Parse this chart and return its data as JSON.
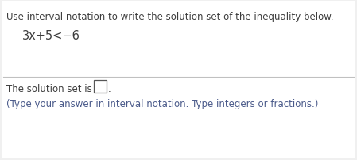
{
  "bg_color": "#f0f0f0",
  "inner_bg": "#ffffff",
  "line1": "Use interval notation to write the solution set of the inequality below.",
  "line2": "3x+5<−6",
  "line3": "The solution set is",
  "line4": "(Type your answer in interval notation. Type integers or fractions.)",
  "text_color_dark": "#3d3d3d",
  "text_color_blue": "#4a5a8a",
  "font_size_main": 8.5,
  "font_size_eq": 10.5,
  "divider_color": "#c0c0c0"
}
